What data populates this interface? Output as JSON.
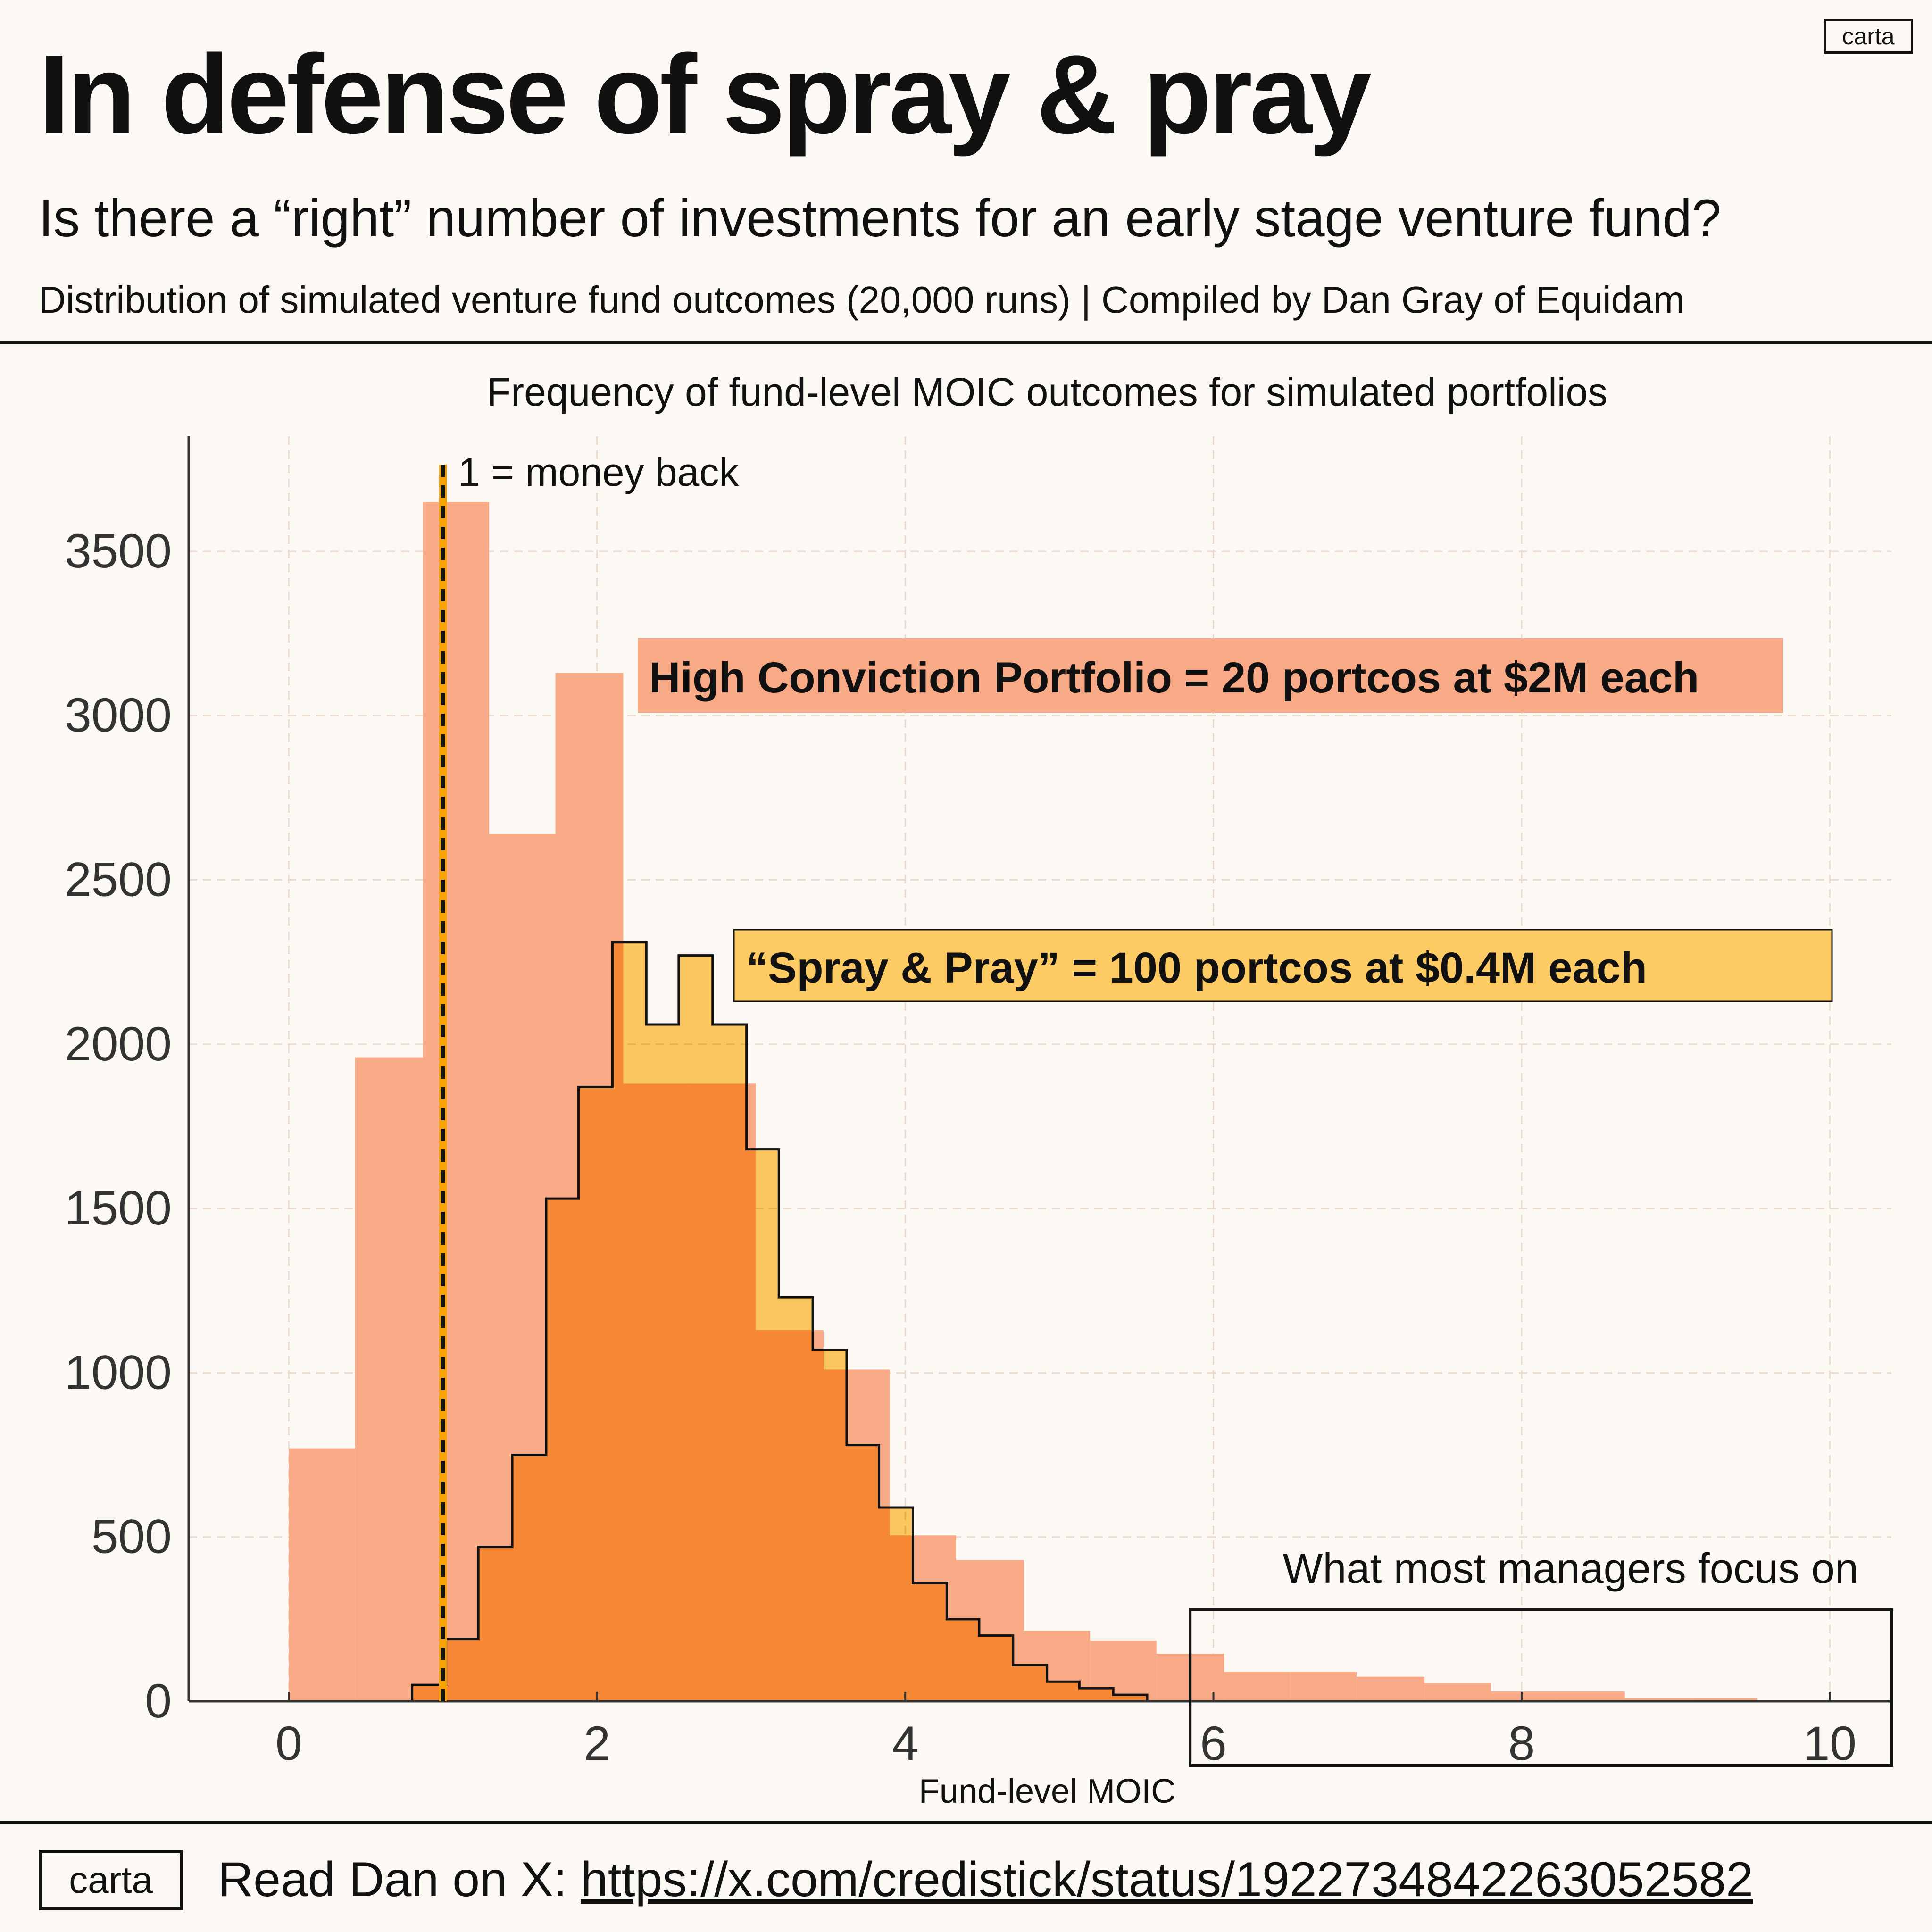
{
  "header": {
    "title": "In defense of spray & pray",
    "subtitle": "Is there a “right” number of investments for an early stage venture fund?",
    "byline": "Distribution of simulated venture fund outcomes (20,000 runs) | Compiled by Dan Gray of Equidam",
    "logo": "carta"
  },
  "footer": {
    "logo": "carta",
    "prefix": "Read Dan on X: ",
    "link": "https://x.com/credistick/status/1922734842263052582"
  },
  "colors": {
    "background": "#fcf9f4",
    "high_conviction": "#f8a985",
    "spray_and_pray": "#fdcb63",
    "overlap": "#f7943e",
    "reference_line": "#f7a400"
  },
  "chart_data": {
    "type": "bar",
    "title": "Frequency of fund-level MOIC outcomes for simulated portfolios",
    "xlabel": "Fund-level MOIC",
    "ylabel": "",
    "xlim": [
      -0.65,
      10.4
    ],
    "ylim": [
      0,
      3850
    ],
    "xticks": [
      0,
      2,
      4,
      6,
      8,
      10
    ],
    "yticks": [
      0,
      500,
      1000,
      1500,
      2000,
      2500,
      3000,
      3500
    ],
    "grid": true,
    "series": [
      {
        "name": "High Conviction Portfolio = 20 portcos at $2M each",
        "color": "#f8a985",
        "bin_edges": [
          0,
          0.43,
          0.87,
          1.3,
          1.73,
          2.17,
          2.6,
          3.03,
          3.47,
          3.9,
          4.33,
          4.77,
          5.2,
          5.63,
          6.07,
          6.5,
          6.93,
          7.37,
          7.8,
          8.23,
          8.67,
          9.1,
          9.53
        ],
        "counts": [
          770,
          1960,
          3650,
          2640,
          3130,
          1880,
          1880,
          1130,
          1010,
          505,
          430,
          215,
          185,
          145,
          90,
          90,
          75,
          55,
          30,
          30,
          10,
          10
        ]
      },
      {
        "name": "“Spray & Pray” = 100 portcos at $0.4M each",
        "color": "#fdcb63",
        "bin_edges": [
          0.8,
          1.02,
          1.23,
          1.45,
          1.67,
          1.88,
          2.1,
          2.32,
          2.53,
          2.75,
          2.97,
          3.18,
          3.4,
          3.62,
          3.83,
          4.05,
          4.27,
          4.48,
          4.7,
          4.92,
          5.13,
          5.35,
          5.57
        ],
        "counts": [
          50,
          190,
          470,
          750,
          1530,
          1870,
          2310,
          2060,
          2270,
          2060,
          1680,
          1230,
          1070,
          780,
          590,
          360,
          250,
          200,
          110,
          60,
          40,
          20
        ]
      }
    ],
    "annotations": {
      "reference_line_x": 1,
      "reference_line_label": "1 = money back",
      "focus_box_label": "What most managers focus on",
      "focus_box_x": [
        5.8,
        10.4
      ]
    }
  }
}
